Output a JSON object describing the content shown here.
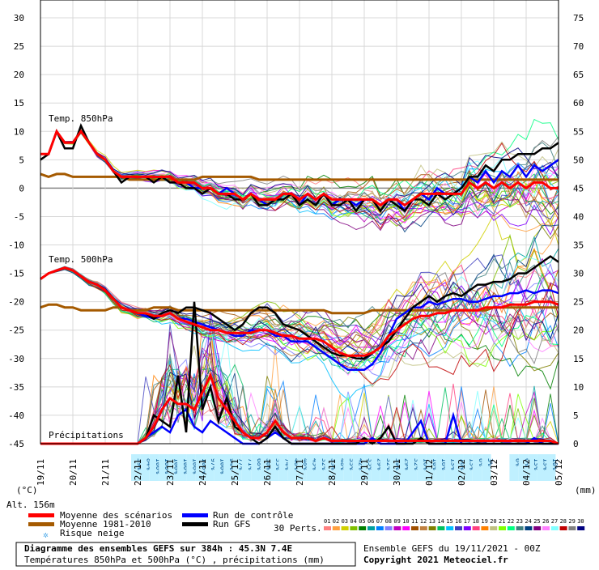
{
  "chart_data": {
    "type": "line",
    "left_axis": {
      "label": "(°C)",
      "ticks": [
        "30",
        "25",
        "20",
        "15",
        "10",
        "5",
        "0",
        "-5",
        "-10",
        "-15",
        "-20",
        "-25",
        "-30",
        "-35",
        "-40",
        "-45"
      ],
      "range": [
        -45,
        30
      ]
    },
    "right_axis": {
      "label": "(mm)",
      "ticks": [
        "75",
        "70",
        "65",
        "60",
        "55",
        "50",
        "45",
        "40",
        "35",
        "30",
        "25",
        "20",
        "15",
        "10",
        "5",
        "0"
      ],
      "range": [
        0,
        75
      ]
    },
    "x_ticks": [
      "19/11",
      "20/11",
      "21/11",
      "22/11",
      "23/11",
      "24/11",
      "25/11",
      "26/11",
      "27/11",
      "28/11",
      "29/11",
      "30/11",
      "01/12",
      "02/12",
      "03/12",
      "04/12",
      "05/12"
    ],
    "x_hours": [
      0,
      384
    ],
    "section_labels": {
      "t850": "Temp. 850hPa",
      "t500": "Temp. 500hPa",
      "precip": "Précipitations"
    },
    "snow_risk_percent": [
      "39%",
      "84%",
      "100%",
      "100%",
      "100%",
      "100%",
      "100%",
      "100%",
      "97%",
      "100%",
      "94%",
      "77%",
      "71%",
      "68%",
      "58%",
      "55%",
      "74%",
      "48%",
      "48%",
      "45%",
      "32%",
      "35%",
      "48%",
      "55%",
      "42%",
      "35%",
      "29%",
      "32%",
      "39%",
      "29%",
      "32%",
      "16%",
      "10%",
      "16%",
      "13%",
      "16%",
      "13%",
      "6%",
      "3%",
      "",
      "",
      "6%",
      "6%",
      "13%",
      "13%",
      "10%"
    ],
    "series": [
      {
        "name": "Moyenne des scénarios",
        "color": "#ff0000",
        "t850": [
          6,
          6,
          10,
          8,
          8,
          10,
          8,
          6,
          5,
          3,
          2,
          2,
          2,
          2,
          2,
          2,
          2,
          1,
          1,
          1,
          0,
          0,
          -1,
          -1,
          -1,
          -2,
          -1,
          -2,
          -2,
          -2,
          -1,
          -1,
          -2,
          -1,
          -2,
          -1,
          -2,
          -2,
          -2,
          -2,
          -2,
          -2,
          -3,
          -2,
          -2,
          -3,
          -2,
          -1,
          -1,
          -1,
          -1,
          -1,
          -1,
          1,
          0,
          1,
          0,
          1,
          0,
          1,
          0,
          1,
          1,
          0,
          0
        ],
        "t500": [
          -16,
          -15,
          -14.5,
          -14,
          -14.5,
          -15.5,
          -16.5,
          -17,
          -18,
          -19.5,
          -21,
          -21.5,
          -22,
          -22,
          -22.5,
          -22.5,
          -22,
          -23,
          -23.5,
          -24,
          -24.5,
          -25,
          -25,
          -25.5,
          -25.5,
          -25.5,
          -25.5,
          -25,
          -25,
          -25.5,
          -26,
          -26,
          -26.5,
          -26.5,
          -26.5,
          -27,
          -28,
          -29,
          -29.5,
          -29.5,
          -29.5,
          -29,
          -28,
          -26,
          -25,
          -24,
          -23,
          -22.5,
          -22.5,
          -22,
          -22,
          -21.5,
          -21.5,
          -21.5,
          -21.5,
          -21,
          -21,
          -21,
          -20.5,
          -20.5,
          -20.5,
          -20,
          -20,
          -20,
          -20.5
        ],
        "precip": [
          0,
          0,
          0,
          0,
          0,
          0,
          0,
          0,
          0,
          0,
          0,
          0,
          0,
          1,
          3,
          6,
          8,
          7,
          7,
          6,
          9,
          12,
          8,
          6,
          4,
          2,
          1,
          1,
          2,
          4,
          2,
          1,
          1,
          1,
          0.5,
          1,
          0.5,
          0.5,
          0.5,
          0.5,
          0.5,
          0.5,
          0.5,
          0.5,
          0.5,
          0.5,
          0.5,
          0.5,
          0.5,
          0.5,
          0.5,
          0.5,
          0.5,
          0.5,
          0.5,
          0.5,
          0.5,
          0.5,
          0.5,
          0.5,
          0.5,
          0.5,
          0.5,
          0.5,
          0
        ]
      },
      {
        "name": "Moyenne 1981-2010",
        "color": "#a55a00",
        "t850": [
          2.5,
          2,
          2.5,
          2.5,
          2,
          2,
          2,
          2,
          2,
          2,
          2,
          1.5,
          1.5,
          1.5,
          1.5,
          1.5,
          1.5,
          1.5,
          1.5,
          1.5,
          2,
          2,
          2,
          2,
          2,
          2,
          2,
          1.5,
          1.5,
          1.5,
          1.5,
          1.5,
          1.5,
          1.5,
          1.5,
          1.5,
          1.5,
          1.5,
          1.5,
          1.5,
          1.5,
          1.5,
          1.5,
          1.5,
          1.5,
          1.5,
          1.5,
          1.5,
          1.5,
          1.5,
          1.5,
          1.5,
          1.5,
          1.5,
          1.5,
          1.5,
          1.5,
          1.5,
          1.5,
          1.5,
          1.5,
          1.5,
          1.5,
          1.5,
          1.5
        ],
        "t500": [
          -21,
          -20.5,
          -20.5,
          -21,
          -21,
          -21.5,
          -21.5,
          -21.5,
          -21.5,
          -21,
          -21,
          -21.5,
          -21.5,
          -21.5,
          -21,
          -21,
          -21,
          -21.5,
          -21.5,
          -21.5,
          -21.5,
          -21.5,
          -21.5,
          -21.5,
          -21.5,
          -21.5,
          -21.5,
          -21.5,
          -21.5,
          -21.5,
          -21.5,
          -21.5,
          -21.5,
          -21.5,
          -21.5,
          -21.5,
          -22,
          -22,
          -22,
          -22,
          -22,
          -21.5,
          -21.5,
          -21.5,
          -21.5,
          -21.5,
          -21.5,
          -21.5,
          -21.5,
          -21.5,
          -21.5,
          -21.5,
          -21.5,
          -21.5,
          -21.5,
          -21.5,
          -21,
          -21,
          -21,
          -21,
          -21,
          -21,
          -21,
          -21,
          -21
        ]
      },
      {
        "name": "Run de contrôle",
        "color": "#0000ff",
        "t850": [
          6,
          6,
          10,
          8,
          8,
          10,
          8,
          6,
          5,
          3,
          2,
          2,
          2,
          2,
          2,
          2,
          1,
          1,
          1,
          0,
          0,
          0,
          -1,
          0,
          -1,
          -2,
          -1,
          -2,
          -3,
          -2,
          -1,
          -1,
          -3,
          -1,
          -2,
          -1,
          -3,
          -2,
          -2,
          -3,
          -2,
          -2,
          -4,
          -2,
          -2,
          -4,
          -2,
          -1,
          -2,
          0,
          -1,
          -1,
          0,
          2,
          1,
          3,
          1,
          3,
          2,
          4,
          2,
          4,
          3,
          4,
          5
        ],
        "t500": [
          -16,
          -15,
          -14.5,
          -14,
          -14.5,
          -15.5,
          -16.5,
          -17,
          -18,
          -19.5,
          -21,
          -21.5,
          -22,
          -22.5,
          -23,
          -22.5,
          -22,
          -23,
          -23,
          -23.5,
          -24,
          -24.5,
          -25,
          -25.5,
          -26,
          -26,
          -25,
          -25,
          -25,
          -26,
          -26,
          -27,
          -27,
          -27,
          -28,
          -29,
          -30,
          -31,
          -32,
          -32,
          -32,
          -31,
          -29,
          -26,
          -23,
          -22,
          -21,
          -21,
          -20,
          -20.5,
          -20,
          -19.5,
          -19.5,
          -20,
          -20,
          -19.5,
          -19,
          -19,
          -18.5,
          -18.5,
          -18,
          -18.5,
          -18,
          -18,
          -18.5
        ],
        "precip": [
          0,
          0,
          0,
          0,
          0,
          0,
          0,
          0,
          0,
          0,
          0,
          0,
          0,
          1,
          2,
          3,
          2,
          5,
          6,
          3,
          2,
          4,
          3,
          2,
          1,
          0,
          0,
          0,
          1,
          2,
          1,
          0,
          0,
          0,
          0,
          0,
          0,
          0,
          0,
          0,
          0,
          1,
          0,
          0,
          0,
          0,
          2,
          4,
          0,
          0,
          0,
          5,
          0,
          0,
          0,
          0,
          0,
          0,
          0,
          0,
          0,
          1,
          0,
          0,
          0
        ]
      },
      {
        "name": "Run GFS",
        "color": "#000000",
        "t850": [
          5,
          6,
          10,
          7,
          7,
          11,
          8,
          6,
          5,
          3,
          1,
          2,
          2,
          2,
          1,
          2,
          1,
          1,
          0,
          0,
          -1,
          0,
          -1,
          -1,
          -2,
          -2,
          -1,
          -3,
          -3,
          -2,
          -2,
          -1,
          -3,
          -2,
          -3,
          -1,
          -3,
          -3,
          -2,
          -4,
          -2,
          -2,
          -4,
          -2,
          -3,
          -4,
          -2,
          -2,
          -3,
          -1,
          -2,
          -1,
          0,
          2,
          2,
          4,
          3,
          5,
          5,
          6,
          6,
          6,
          7,
          7,
          8
        ],
        "t500": [
          -16,
          -15,
          -14.5,
          -14,
          -14.5,
          -15.5,
          -16.5,
          -17,
          -18,
          -19.5,
          -21,
          -21.5,
          -22,
          -22,
          -23,
          -22,
          -21.5,
          -22,
          -21,
          -21,
          -21.5,
          -22,
          -23,
          -24,
          -25,
          -24,
          -22,
          -21,
          -21,
          -22,
          -24,
          -24.5,
          -25,
          -26,
          -27,
          -28,
          -29,
          -29.5,
          -29.5,
          -30,
          -30,
          -29,
          -28,
          -27,
          -25,
          -23,
          -21,
          -20,
          -19,
          -20,
          -19,
          -18.5,
          -19,
          -18,
          -17,
          -17,
          -16.5,
          -16.5,
          -16,
          -15,
          -15,
          -14,
          -13,
          -12,
          -13
        ],
        "precip": [
          0,
          0,
          0,
          0,
          0,
          0,
          0,
          0,
          0,
          0,
          0,
          0,
          0,
          1,
          5,
          4,
          3,
          12,
          2,
          25,
          6,
          10,
          4,
          8,
          3,
          2,
          1,
          0,
          1,
          3,
          1,
          0,
          0,
          0,
          0,
          0,
          0,
          0,
          0,
          0,
          1,
          0,
          1,
          3,
          0,
          0,
          0,
          1,
          0,
          0,
          0,
          0,
          0,
          0,
          0,
          0,
          0,
          0,
          0,
          0,
          0,
          0,
          0,
          0,
          0
        ]
      }
    ],
    "perturbation_count": 30,
    "perturbations": [
      {
        "id": "01",
        "color": "#ff8080"
      },
      {
        "id": "02",
        "color": "#ffa040"
      },
      {
        "id": "03",
        "color": "#d0d000"
      },
      {
        "id": "04",
        "color": "#80c000"
      },
      {
        "id": "05",
        "color": "#008000"
      },
      {
        "id": "06",
        "color": "#00a0a0"
      },
      {
        "id": "07",
        "color": "#0080ff"
      },
      {
        "id": "08",
        "color": "#8080ff"
      },
      {
        "id": "09",
        "color": "#c000c0"
      },
      {
        "id": "10",
        "color": "#ff00ff"
      },
      {
        "id": "11",
        "color": "#a05000"
      },
      {
        "id": "12",
        "color": "#c08040"
      },
      {
        "id": "13",
        "color": "#808000"
      },
      {
        "id": "14",
        "color": "#00c060"
      },
      {
        "id": "15",
        "color": "#00c0ff"
      },
      {
        "id": "16",
        "color": "#4040c0"
      },
      {
        "id": "17",
        "color": "#8000ff"
      },
      {
        "id": "18",
        "color": "#ff4080"
      },
      {
        "id": "19",
        "color": "#ff8000"
      },
      {
        "id": "20",
        "color": "#c0c080"
      },
      {
        "id": "21",
        "color": "#80ff00"
      },
      {
        "id": "22",
        "color": "#00ff80"
      },
      {
        "id": "23",
        "color": "#408080"
      },
      {
        "id": "24",
        "color": "#004080"
      },
      {
        "id": "25",
        "color": "#800080"
      },
      {
        "id": "26",
        "color": "#ff80ff"
      },
      {
        "id": "27",
        "color": "#80ffff"
      },
      {
        "id": "28",
        "color": "#c00000"
      },
      {
        "id": "29",
        "color": "#808080"
      },
      {
        "id": "30",
        "color": "#000080"
      }
    ]
  },
  "labels": {
    "alt": "Alt. 156m",
    "perts": "30 Perts.",
    "legend_mean": "Moyenne des scénarios",
    "legend_clim": "Moyenne 1981-2010",
    "legend_snow": "Risque neige",
    "legend_control": "Run de contrôle",
    "legend_gfs": "Run GFS",
    "title": "Diagramme des ensembles GEFS sur 384h : 45.3N 7.4E",
    "subtitle": "Températures 850hPa et 500hPa (°C) , précipitations (mm)",
    "run_info": "Ensemble GEFS du 19/11/2021 - 00Z",
    "copyright": "Copyright 2021 Meteociel.fr"
  }
}
